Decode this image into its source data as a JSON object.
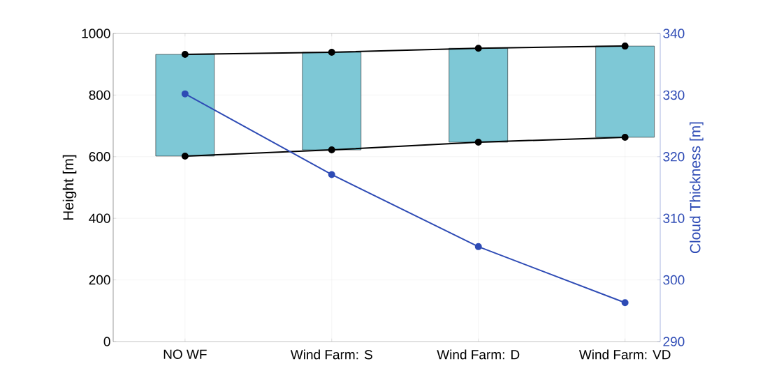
{
  "chart_data": {
    "type": "bar",
    "ylabel": "Height [m]",
    "y2label": "Cloud Thickness [m]",
    "categories": [
      "NO WF",
      "Wind Farm: S",
      "Wind Farm: D",
      "Wind Farm: VD"
    ],
    "series": [
      {
        "color": "#7ec8d6",
        "base": [
          602,
          622,
          647,
          663
        ],
        "values": [
          330,
          317,
          305,
          296
        ]
      },
      {
        "type": "line",
        "color": "#000000",
        "values": [
          932,
          939,
          952,
          959
        ]
      },
      {
        "type": "line",
        "color": "#000000",
        "values": [
          602,
          622,
          647,
          663
        ]
      },
      {
        "type": "line",
        "color": "#2e4bb5",
        "axis": "y2",
        "values": [
          330.2,
          317.1,
          305.4,
          296.3
        ]
      }
    ],
    "ylim": [
      0,
      1000
    ],
    "yticks": [
      0,
      200,
      400,
      600,
      800,
      1000
    ],
    "y2lim": [
      290,
      340
    ],
    "y2ticks": [
      290,
      300,
      310,
      320,
      330,
      340
    ],
    "grid": true,
    "marker": "circle",
    "line_style": "solid"
  }
}
